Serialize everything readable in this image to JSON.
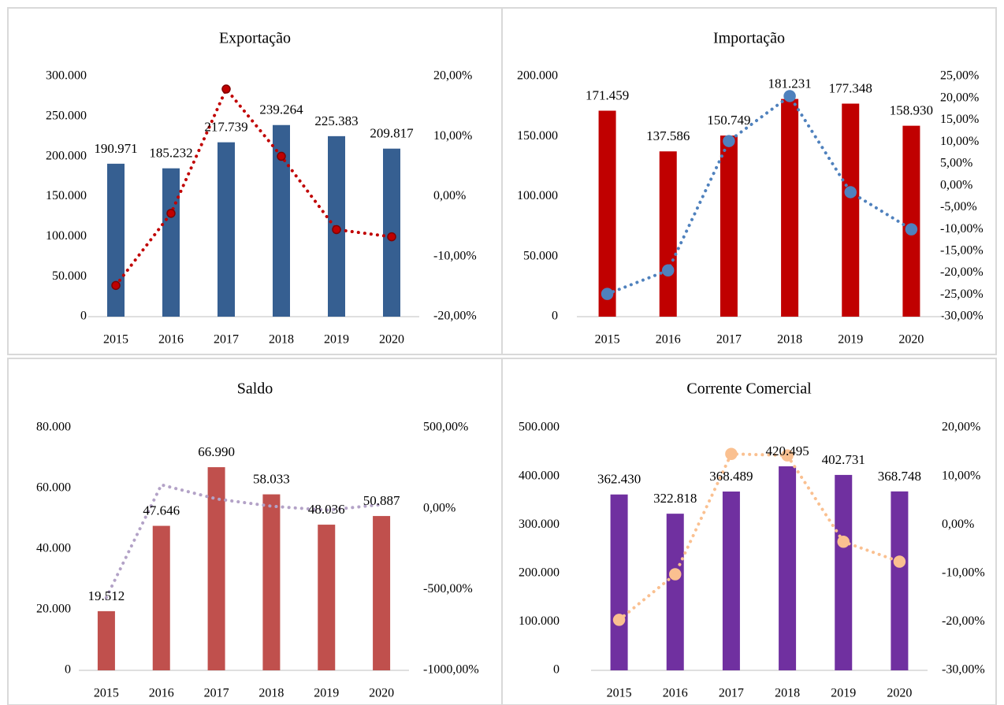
{
  "chart_data": [
    {
      "type": "bar",
      "title": "Exportação",
      "categories": [
        "2015",
        "2016",
        "2017",
        "2018",
        "2019",
        "2020"
      ],
      "series": [
        {
          "type": "bar",
          "color": "#365f91",
          "values": [
            190971,
            185232,
            217739,
            239264,
            225383,
            209817
          ],
          "value_labels": [
            "190.971",
            "185.232",
            "217.739",
            "239.264",
            "225.383",
            "209.817"
          ]
        },
        {
          "type": "line",
          "axis": "y2",
          "color": "#c00000",
          "markers": true,
          "values": [
            -14.8,
            -2.8,
            17.9,
            6.7,
            -5.5,
            -6.7
          ]
        }
      ],
      "ylim": [
        0,
        300000
      ],
      "yticks": [
        {
          "value": 0,
          "label": "0"
        },
        {
          "value": 50000,
          "label": "50.000"
        },
        {
          "value": 100000,
          "label": "100.000"
        },
        {
          "value": 150000,
          "label": "150.000"
        },
        {
          "value": 200000,
          "label": "200.000"
        },
        {
          "value": 250000,
          "label": "250.000"
        },
        {
          "value": 300000,
          "label": "300.000"
        }
      ],
      "y2lim": [
        -20,
        20
      ],
      "y2ticks": [
        {
          "value": -20,
          "label": "-20,00%"
        },
        {
          "value": -10,
          "label": "-10,00%"
        },
        {
          "value": 0,
          "label": "0,00%"
        },
        {
          "value": 10,
          "label": "10,00%"
        },
        {
          "value": 20,
          "label": "20,00%"
        }
      ]
    },
    {
      "type": "bar",
      "title": "Importação",
      "categories": [
        "2015",
        "2016",
        "2017",
        "2018",
        "2019",
        "2020"
      ],
      "series": [
        {
          "type": "bar",
          "color": "#c00000",
          "values": [
            171459,
            137586,
            150749,
            181231,
            177348,
            158930
          ],
          "value_labels": [
            "171.459",
            "137.586",
            "150.749",
            "181.231",
            "177.348",
            "158.930"
          ]
        },
        {
          "type": "line",
          "axis": "y2",
          "color": "#4f81bd",
          "markers": true,
          "values": [
            -24.8,
            -19.4,
            10.2,
            20.5,
            -1.5,
            -10
          ]
        }
      ],
      "ylim": [
        0,
        200000
      ],
      "yticks": [
        {
          "value": 0,
          "label": "0"
        },
        {
          "value": 50000,
          "label": "50.000"
        },
        {
          "value": 100000,
          "label": "100.000"
        },
        {
          "value": 150000,
          "label": "150.000"
        },
        {
          "value": 200000,
          "label": "200.000"
        }
      ],
      "y2lim": [
        -30,
        25
      ],
      "y2ticks": [
        {
          "value": -30,
          "label": "-30,00%"
        },
        {
          "value": -25,
          "label": "-25,00%"
        },
        {
          "value": -20,
          "label": "-20,00%"
        },
        {
          "value": -15,
          "label": "-15,00%"
        },
        {
          "value": -10,
          "label": "-10,00%"
        },
        {
          "value": -5,
          "label": "-5,00%"
        },
        {
          "value": 0,
          "label": "0,00%"
        },
        {
          "value": 5,
          "label": "5,00%"
        },
        {
          "value": 10,
          "label": "10,00%"
        },
        {
          "value": 15,
          "label": "15,00%"
        },
        {
          "value": 20,
          "label": "20,00%"
        },
        {
          "value": 25,
          "label": "25,00%"
        }
      ]
    },
    {
      "type": "bar",
      "title": "Saldo",
      "categories": [
        "2015",
        "2016",
        "2017",
        "2018",
        "2019",
        "2020"
      ],
      "series": [
        {
          "type": "bar",
          "color": "#c0504d",
          "values": [
            19512,
            47646,
            66990,
            58033,
            48036,
            50887
          ],
          "value_labels": [
            "19.512",
            "47.646",
            "66.990",
            "58.033",
            "48.036",
            "50.887"
          ]
        },
        {
          "type": "line",
          "axis": "y2",
          "color": "#b3a2c7",
          "markers": false,
          "values": [
            -550,
            147,
            60,
            15,
            -10,
            25
          ]
        }
      ],
      "ylim": [
        0,
        80000
      ],
      "yticks": [
        {
          "value": 0,
          "label": "0"
        },
        {
          "value": 20000,
          "label": "20.000"
        },
        {
          "value": 40000,
          "label": "40.000"
        },
        {
          "value": 60000,
          "label": "60.000"
        },
        {
          "value": 80000,
          "label": "80.000"
        }
      ],
      "y2lim": [
        -1000,
        500
      ],
      "y2ticks": [
        {
          "value": -1000,
          "label": "-1000,00%"
        },
        {
          "value": -500,
          "label": "-500,00%"
        },
        {
          "value": 0,
          "label": "0,00%"
        },
        {
          "value": 500,
          "label": "500,00%"
        }
      ]
    },
    {
      "type": "bar",
      "title": "Corrente Comercial",
      "categories": [
        "2015",
        "2016",
        "2017",
        "2018",
        "2019",
        "2020"
      ],
      "series": [
        {
          "type": "bar",
          "color": "#7030a0",
          "values": [
            362430,
            322818,
            368489,
            420495,
            402731,
            368748
          ],
          "value_labels": [
            "362.430",
            "322.818",
            "368.489",
            "420.495",
            "402.731",
            "368.748"
          ]
        },
        {
          "type": "line",
          "axis": "y2",
          "color": "#fac090",
          "markers": true,
          "values": [
            -19.6,
            -10.2,
            14.6,
            14.3,
            -3.5,
            -7.6
          ]
        }
      ],
      "ylim": [
        0,
        500000
      ],
      "yticks": [
        {
          "value": 0,
          "label": "0"
        },
        {
          "value": 100000,
          "label": "100.000"
        },
        {
          "value": 200000,
          "label": "200.000"
        },
        {
          "value": 300000,
          "label": "300.000"
        },
        {
          "value": 400000,
          "label": "400.000"
        },
        {
          "value": 500000,
          "label": "500.000"
        }
      ],
      "y2lim": [
        -30,
        20
      ],
      "y2ticks": [
        {
          "value": -30,
          "label": "-30,00%"
        },
        {
          "value": -20,
          "label": "-20,00%"
        },
        {
          "value": -10,
          "label": "-10,00%"
        },
        {
          "value": 0,
          "label": "0,00%"
        },
        {
          "value": 10,
          "label": "10,00%"
        },
        {
          "value": 20,
          "label": "20,00%"
        }
      ]
    }
  ]
}
